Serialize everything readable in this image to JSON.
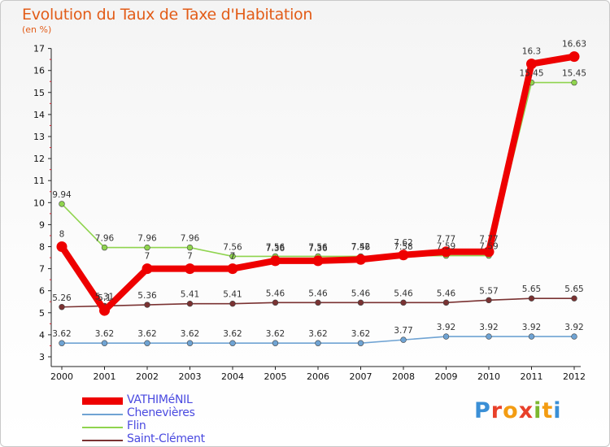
{
  "header": {
    "title": "Evolution du Taux de Taxe d'Habitation",
    "subtitle": "(en %)"
  },
  "logo": {
    "text": "Proxiti",
    "colors": [
      "#3a8fd6",
      "#e8402a",
      "#f39c12",
      "#e8402a",
      "#7cb82f",
      "#f39c12",
      "#3a8fd6"
    ]
  },
  "chart_data": {
    "type": "line",
    "title": "Evolution du Taux de Taxe d'Habitation",
    "ylabel": "(en %)",
    "x": [
      "2000",
      "2001",
      "2002",
      "2003",
      "2004",
      "2005",
      "2006",
      "2007",
      "2008",
      "2009",
      "2010",
      "2011",
      "2012"
    ],
    "ylim": [
      3,
      17
    ],
    "yticks": [
      3,
      4,
      5,
      6,
      7,
      8,
      9,
      10,
      11,
      12,
      13,
      14,
      15,
      16,
      17
    ],
    "grid": false,
    "legend": "bottom-left",
    "series": [
      {
        "name": "VATHIMéNIL",
        "color": "#ee0000",
        "values": [
          8,
          5.1,
          7,
          7,
          7,
          7.36,
          7.36,
          7.42,
          7.62,
          7.77,
          7.77,
          16.3,
          16.63
        ],
        "labels": [
          "8",
          "5.1",
          "7",
          "7",
          "7",
          "7.36",
          "7.36",
          "7.42",
          "7.62",
          "7.77",
          "7.77",
          "16.3",
          "16.63"
        ]
      },
      {
        "name": "Chenevières",
        "color": "#6fa3d3",
        "values": [
          3.62,
          3.62,
          3.62,
          3.62,
          3.62,
          3.62,
          3.62,
          3.62,
          3.77,
          3.92,
          3.92,
          3.92,
          3.92
        ],
        "labels": [
          "3.62",
          "3.62",
          "3.62",
          "3.62",
          "3.62",
          "3.62",
          "3.62",
          "3.62",
          "3.77",
          "3.92",
          "3.92",
          "3.92",
          "3.92"
        ]
      },
      {
        "name": "Flin",
        "color": "#8fd44e",
        "values": [
          9.94,
          7.96,
          7.96,
          7.96,
          7.56,
          7.56,
          7.56,
          7.56,
          7.58,
          7.59,
          7.59,
          15.45,
          15.45
        ],
        "labels": [
          "9.94",
          "7.96",
          "7.96",
          "7.96",
          "7.56",
          "7.56",
          "7.56",
          "7.56",
          "7.58",
          "7.59",
          "7.59",
          "15.45",
          "15.45"
        ]
      },
      {
        "name": "Saint-Clément",
        "color": "#7a3232",
        "values": [
          5.26,
          5.31,
          5.36,
          5.41,
          5.41,
          5.46,
          5.46,
          5.46,
          5.46,
          5.46,
          5.57,
          5.65,
          5.65
        ],
        "labels": [
          "5.26",
          "5.31",
          "5.36",
          "5.41",
          "5.41",
          "5.46",
          "5.46",
          "5.46",
          "5.46",
          "5.46",
          "5.57",
          "5.65",
          "5.65"
        ]
      }
    ]
  }
}
